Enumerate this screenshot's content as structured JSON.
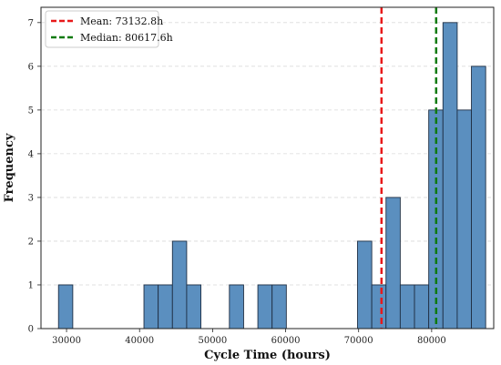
{
  "chart_data": {
    "type": "bar",
    "subtype": "histogram",
    "xlabel": "Cycle Time (hours)",
    "ylabel": "Frequency",
    "xlim": [
      26500,
      88500
    ],
    "ylim": [
      0,
      7.35
    ],
    "x_ticks": [
      30000,
      40000,
      50000,
      60000,
      70000,
      80000
    ],
    "y_ticks": [
      0,
      1,
      2,
      3,
      4,
      5,
      6,
      7
    ],
    "grid": "horizontal dashed",
    "bar_color": "#5b8fbf",
    "bar_edge_color": "#1f2f44",
    "bins": [
      {
        "x0": 28900,
        "x1": 30850,
        "count": 1
      },
      {
        "x0": 40600,
        "x1": 42550,
        "count": 1
      },
      {
        "x0": 42550,
        "x1": 44500,
        "count": 1
      },
      {
        "x0": 44500,
        "x1": 46450,
        "count": 2
      },
      {
        "x0": 46450,
        "x1": 48400,
        "count": 1
      },
      {
        "x0": 52300,
        "x1": 54250,
        "count": 1
      },
      {
        "x0": 56200,
        "x1": 58150,
        "count": 1
      },
      {
        "x0": 58150,
        "x1": 60100,
        "count": 1
      },
      {
        "x0": 69850,
        "x1": 71800,
        "count": 2
      },
      {
        "x0": 71800,
        "x1": 73750,
        "count": 1
      },
      {
        "x0": 73750,
        "x1": 75700,
        "count": 3
      },
      {
        "x0": 75700,
        "x1": 77650,
        "count": 1
      },
      {
        "x0": 77650,
        "x1": 79600,
        "count": 1
      },
      {
        "x0": 79600,
        "x1": 81550,
        "count": 5
      },
      {
        "x0": 81550,
        "x1": 83500,
        "count": 7
      },
      {
        "x0": 83500,
        "x1": 85450,
        "count": 5
      },
      {
        "x0": 85450,
        "x1": 87400,
        "count": 6
      }
    ],
    "reference_lines": [
      {
        "label": "Mean: 73132.8h",
        "value": 73132.8,
        "color": "#e8191a",
        "style": "dashed"
      },
      {
        "label": "Median: 80617.6h",
        "value": 80617.6,
        "color": "#0e7a0d",
        "style": "dashed"
      }
    ],
    "legend": "top-left"
  }
}
